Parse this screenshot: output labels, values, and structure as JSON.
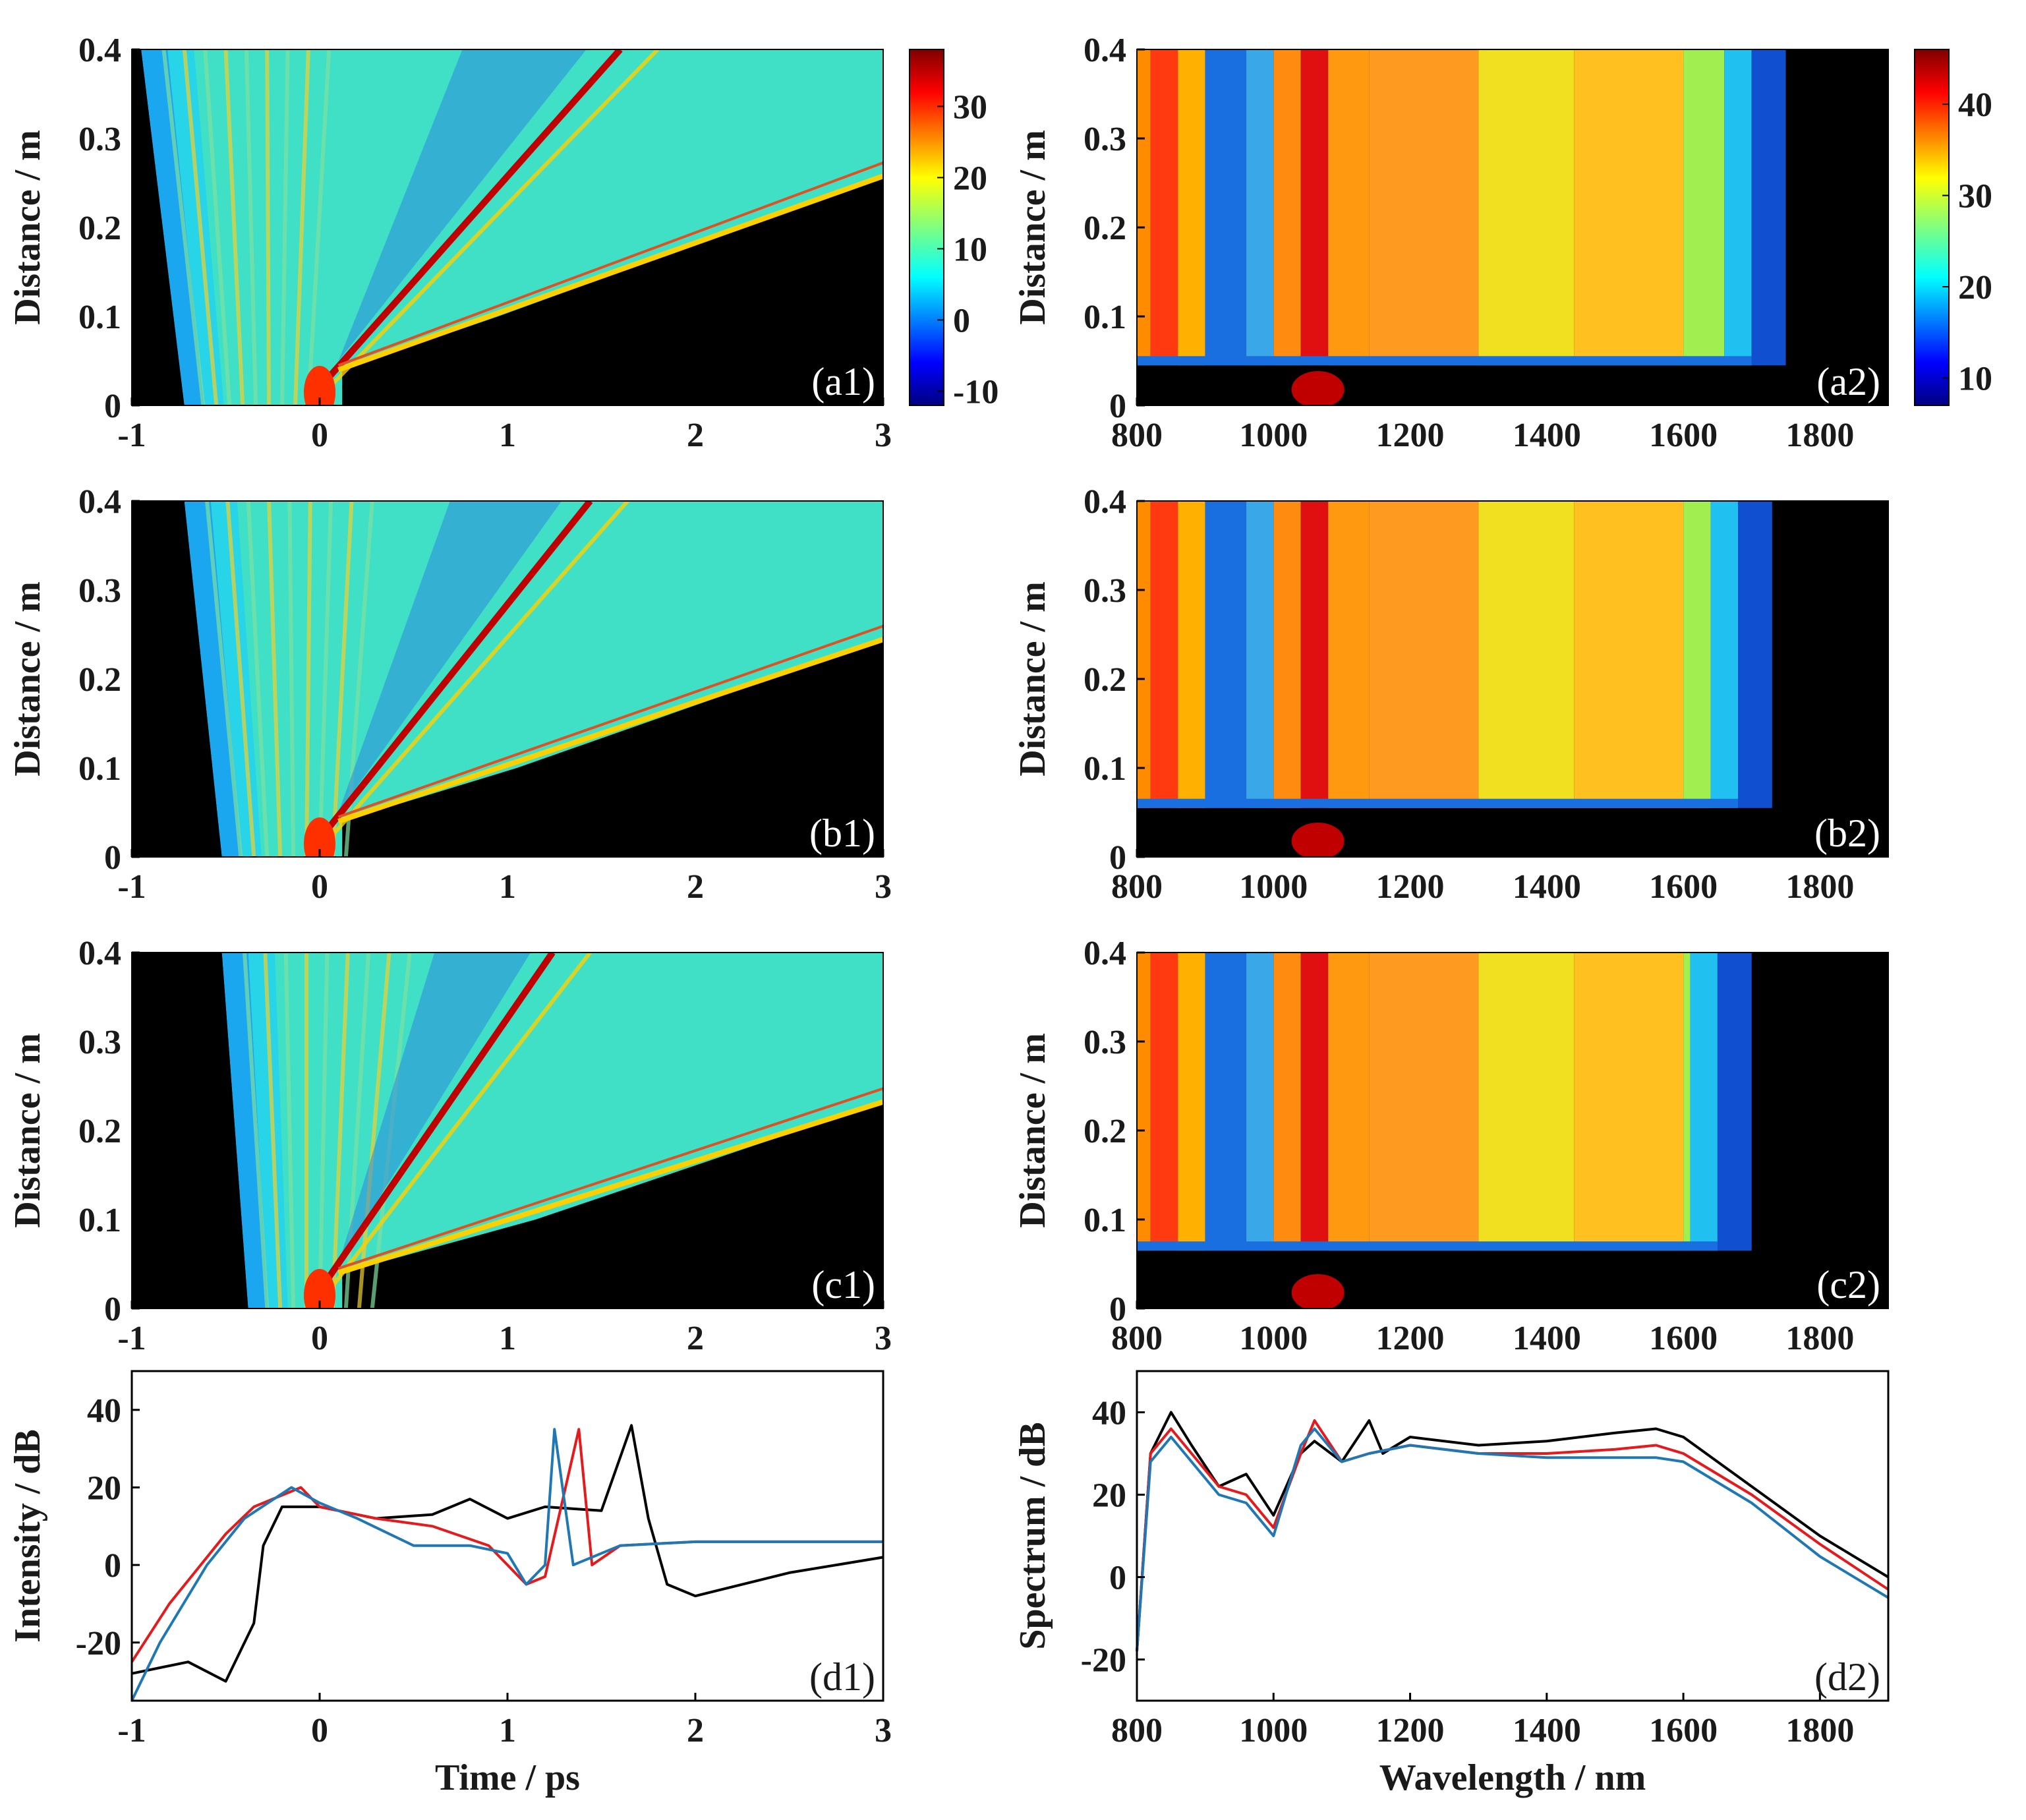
{
  "chart_data": [
    {
      "id": "a1",
      "type": "heatmap",
      "panel_label": "(a1)",
      "domain": "time",
      "xlabel": "",
      "ylabel": "Distance / m",
      "x_ticks": [
        "-1",
        "0",
        "1",
        "2",
        "3"
      ],
      "y_ticks": [
        "0",
        "0.1",
        "0.2",
        "0.3",
        "0.4"
      ],
      "xlim": [
        -1,
        3
      ],
      "ylim": [
        0,
        0.4
      ],
      "colorbar": {
        "min": -12,
        "max": 38,
        "ticks": [
          "-10",
          "0",
          "10",
          "20",
          "30"
        ]
      },
      "features": {
        "left_edge_z0": -0.72,
        "left_edge_z04": -0.95,
        "soliton_slope_ps_per_m": 4.0,
        "soliton_start": 0.02,
        "right_edge_z01": 0.95,
        "dispersive_slope": 13.0
      }
    },
    {
      "id": "a2",
      "type": "heatmap",
      "panel_label": "(a2)",
      "domain": "wavelength",
      "xlabel": "",
      "ylabel": "Distance / m",
      "x_ticks": [
        "800",
        "1000",
        "1200",
        "1400",
        "1600",
        "1800"
      ],
      "y_ticks": [
        "0",
        "0.1",
        "0.2",
        "0.3",
        "0.4"
      ],
      "xlim": [
        800,
        1900
      ],
      "ylim": [
        0,
        0.4
      ],
      "colorbar": {
        "min": 7,
        "max": 46,
        "ticks": [
          "10",
          "20",
          "30",
          "40"
        ]
      },
      "features": {
        "onset_distance": 0.045,
        "long_edge_nm": 1700
      }
    },
    {
      "id": "b1",
      "type": "heatmap",
      "panel_label": "(b1)",
      "domain": "time",
      "xlabel": "",
      "ylabel": "Distance / m",
      "x_ticks": [
        "-1",
        "0",
        "1",
        "2",
        "3"
      ],
      "y_ticks": [
        "0",
        "0.1",
        "0.2",
        "0.3",
        "0.4"
      ],
      "xlim": [
        -1,
        3
      ],
      "ylim": [
        0,
        0.4
      ],
      "features": {
        "left_edge_z0": -0.52,
        "left_edge_z04": -0.72,
        "soliton_slope_ps_per_m": 3.6,
        "soliton_start": 0.02,
        "right_edge_z01": 1.05,
        "dispersive_slope": 13.5
      }
    },
    {
      "id": "b2",
      "type": "heatmap",
      "panel_label": "(b2)",
      "domain": "wavelength",
      "xlabel": "",
      "ylabel": "Distance / m",
      "x_ticks": [
        "800",
        "1000",
        "1200",
        "1400",
        "1600",
        "1800"
      ],
      "y_ticks": [
        "0",
        "0.1",
        "0.2",
        "0.3",
        "0.4"
      ],
      "xlim": [
        800,
        1900
      ],
      "ylim": [
        0,
        0.4
      ],
      "features": {
        "onset_distance": 0.055,
        "long_edge_nm": 1680
      }
    },
    {
      "id": "c1",
      "type": "heatmap",
      "panel_label": "(c1)",
      "domain": "time",
      "xlabel": "",
      "ylabel": "Distance / m",
      "x_ticks": [
        "-1",
        "0",
        "1",
        "2",
        "3"
      ],
      "y_ticks": [
        "0",
        "0.1",
        "0.2",
        "0.3",
        "0.4"
      ],
      "xlim": [
        -1,
        3
      ],
      "ylim": [
        0,
        0.4
      ],
      "features": {
        "left_edge_z0": -0.38,
        "left_edge_z04": -0.52,
        "soliton_slope_ps_per_m": 3.1,
        "soliton_start": 0.02,
        "right_edge_z01": 1.15,
        "dispersive_slope": 14.0
      }
    },
    {
      "id": "c2",
      "type": "heatmap",
      "panel_label": "(c2)",
      "domain": "wavelength",
      "xlabel": "",
      "ylabel": "Distance / m",
      "x_ticks": [
        "800",
        "1000",
        "1200",
        "1400",
        "1600",
        "1800"
      ],
      "y_ticks": [
        "0",
        "0.1",
        "0.2",
        "0.3",
        "0.4"
      ],
      "xlim": [
        800,
        1900
      ],
      "ylim": [
        0,
        0.4
      ],
      "features": {
        "onset_distance": 0.065,
        "long_edge_nm": 1650
      }
    },
    {
      "id": "d1",
      "type": "line",
      "panel_label": "(d1)",
      "xlabel": "Time / ps",
      "ylabel": "Intensity / dB",
      "x_ticks": [
        "-1",
        "0",
        "1",
        "2",
        "3"
      ],
      "y_ticks": [
        "-20",
        "0",
        "20",
        "40"
      ],
      "xlim": [
        -1,
        3
      ],
      "ylim": [
        -35,
        50
      ],
      "series": [
        {
          "name": "black",
          "color": "#000000",
          "x": [
            -1,
            -0.7,
            -0.5,
            -0.35,
            -0.3,
            -0.2,
            0,
            0.3,
            0.6,
            0.8,
            1.0,
            1.2,
            1.5,
            1.66,
            1.75,
            1.85,
            2.0,
            2.5,
            3.0
          ],
          "y": [
            -28,
            -25,
            -30,
            -15,
            5,
            15,
            15,
            12,
            13,
            17,
            12,
            15,
            14,
            36,
            12,
            -5,
            -8,
            -2,
            2
          ]
        },
        {
          "name": "red",
          "color": "#e41a1c",
          "x": [
            -1,
            -0.8,
            -0.5,
            -0.35,
            -0.1,
            0,
            0.3,
            0.6,
            0.9,
            1.1,
            1.2,
            1.38,
            1.45,
            1.6,
            2.0,
            2.5,
            3.0
          ],
          "y": [
            -25,
            -10,
            8,
            15,
            20,
            15,
            12,
            10,
            5,
            -5,
            -3,
            35,
            0,
            5,
            6,
            6,
            6
          ]
        },
        {
          "name": "blue",
          "color": "#1f77b4",
          "x": [
            -1,
            -0.85,
            -0.6,
            -0.4,
            -0.15,
            0,
            0.2,
            0.5,
            0.8,
            1.0,
            1.1,
            1.2,
            1.25,
            1.35,
            1.6,
            2.0,
            2.5,
            3.0
          ],
          "y": [
            -35,
            -20,
            0,
            12,
            20,
            16,
            12,
            5,
            5,
            3,
            -5,
            0,
            35,
            0,
            5,
            6,
            6,
            6
          ]
        }
      ]
    },
    {
      "id": "d2",
      "type": "line",
      "panel_label": "(d2)",
      "xlabel": "Wavelength / nm",
      "ylabel": "Spectrum / dB",
      "x_ticks": [
        "800",
        "1000",
        "1200",
        "1400",
        "1600",
        "1800"
      ],
      "y_ticks": [
        "-20",
        "0",
        "20",
        "40"
      ],
      "xlim": [
        800,
        1900
      ],
      "ylim": [
        -30,
        50
      ],
      "series": [
        {
          "name": "black",
          "color": "#000000",
          "x": [
            800,
            820,
            850,
            880,
            920,
            960,
            1000,
            1040,
            1060,
            1100,
            1140,
            1160,
            1200,
            1300,
            1400,
            1500,
            1560,
            1600,
            1700,
            1800,
            1900
          ],
          "y": [
            -18,
            30,
            40,
            32,
            22,
            25,
            15,
            30,
            33,
            28,
            38,
            30,
            34,
            32,
            33,
            35,
            36,
            34,
            22,
            10,
            0
          ]
        },
        {
          "name": "red",
          "color": "#e41a1c",
          "x": [
            800,
            820,
            850,
            880,
            920,
            960,
            1000,
            1040,
            1060,
            1100,
            1140,
            1200,
            1300,
            1400,
            1500,
            1560,
            1600,
            1700,
            1800,
            1900
          ],
          "y": [
            -18,
            30,
            36,
            30,
            22,
            20,
            12,
            30,
            38,
            28,
            30,
            32,
            30,
            30,
            31,
            32,
            30,
            20,
            8,
            -3
          ]
        },
        {
          "name": "blue",
          "color": "#1f77b4",
          "x": [
            800,
            820,
            850,
            880,
            920,
            960,
            1000,
            1040,
            1060,
            1100,
            1140,
            1200,
            1300,
            1400,
            1500,
            1560,
            1600,
            1700,
            1800,
            1900
          ],
          "y": [
            -18,
            28,
            34,
            28,
            20,
            18,
            10,
            32,
            36,
            28,
            30,
            32,
            30,
            29,
            29,
            29,
            28,
            18,
            5,
            -5
          ]
        }
      ]
    }
  ]
}
